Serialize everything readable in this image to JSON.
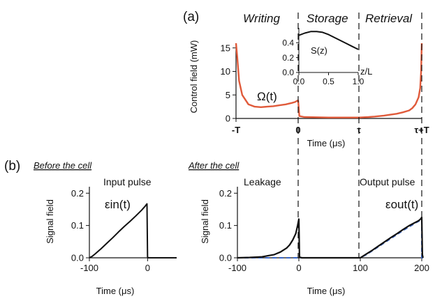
{
  "chart_data": [
    {
      "id": "a",
      "type": "line",
      "panel_label": "(a)",
      "region_labels": [
        "Writing",
        "Storage",
        "Retrieval"
      ],
      "ylabel": "Control field (mW)",
      "xlabel": "Time (μs)",
      "ylim": [
        0,
        16
      ],
      "yticks": [
        0,
        5,
        10,
        15
      ],
      "xticks": [
        "-T",
        "0",
        "τ",
        "τ+T"
      ],
      "annotation": "Ω(t)",
      "series": [
        {
          "color": "#e05a3a",
          "x": [
            0,
            0.02,
            0.05,
            0.1,
            0.2,
            0.3,
            0.4,
            0.5,
            0.6,
            0.7,
            0.8,
            0.9,
            0.95,
            0.99,
            1.0,
            1.02,
            1.1,
            1.5,
            2.0,
            2.3,
            2.5,
            2.8,
            3.0,
            3.2,
            3.4,
            3.6,
            3.7,
            3.8,
            3.9,
            3.95,
            3.98,
            4.0
          ],
          "y": [
            16,
            13,
            8,
            5,
            3,
            2.5,
            2.4,
            2.5,
            2.6,
            2.8,
            3.0,
            3.3,
            3.5,
            3.8,
            3.8,
            0.5,
            0.3,
            0.2,
            0.2,
            0.3,
            0.4,
            0.6,
            0.8,
            1.0,
            1.3,
            1.7,
            2.2,
            3.0,
            4.5,
            6.5,
            10,
            16
          ]
        }
      ]
    },
    {
      "id": "a-inset",
      "type": "line",
      "ylabel": "S(z)",
      "xlabel": "z/L",
      "xlim": [
        0,
        1
      ],
      "ylim": [
        0,
        0.6
      ],
      "xticks": [
        0.0,
        0.5,
        1.0
      ],
      "yticks": [
        0.0,
        0.2,
        0.4
      ],
      "series": [
        {
          "x": [
            0,
            0.1,
            0.2,
            0.3,
            0.4,
            0.5,
            0.6,
            0.7,
            0.8,
            0.9,
            1.0
          ],
          "y": [
            0.5,
            0.53,
            0.55,
            0.55,
            0.54,
            0.51,
            0.47,
            0.43,
            0.39,
            0.35,
            0.31
          ]
        }
      ]
    },
    {
      "id": "b-before",
      "type": "line",
      "panel_label": "(b)",
      "title": "Before the cell",
      "annotation_title": "Input pulse",
      "annotation": "εin(t)",
      "ylabel": "Signal field",
      "xlabel": "Time (μs)",
      "xlim": [
        -100,
        50
      ],
      "ylim": [
        0,
        0.22
      ],
      "xticks": [
        -100,
        0
      ],
      "yticks": [
        0.0,
        0.1,
        0.2
      ],
      "series": [
        {
          "color": "#111111",
          "x": [
            -100,
            -95,
            -90,
            -80,
            -70,
            -60,
            -50,
            -40,
            -30,
            -20,
            -10,
            -5,
            -2,
            -1,
            0,
            1,
            5,
            20,
            50
          ],
          "y": [
            0,
            0.005,
            0.012,
            0.028,
            0.045,
            0.062,
            0.08,
            0.097,
            0.113,
            0.13,
            0.148,
            0.158,
            0.165,
            0.167,
            0.003,
            0,
            0,
            0,
            0
          ]
        }
      ]
    },
    {
      "id": "b-after",
      "type": "line",
      "title": "After the cell",
      "labels": [
        "Leakage",
        "Output pulse"
      ],
      "annotation": "εout(t)",
      "ylabel": "Signal field",
      "xlabel": "Time (μs)",
      "xlim": [
        -100,
        200
      ],
      "ylim": [
        0,
        0.22
      ],
      "xticks": [
        -100,
        0,
        100,
        200
      ],
      "yticks": [
        0.0,
        0.1,
        0.2
      ],
      "series": [
        {
          "color": "#111111",
          "x": [
            -100,
            -80,
            -60,
            -40,
            -30,
            -20,
            -15,
            -10,
            -5,
            -2,
            0,
            1,
            5,
            50,
            99,
            100,
            110,
            120,
            130,
            140,
            150,
            160,
            170,
            180,
            190,
            195,
            198,
            200,
            201,
            202
          ],
          "y": [
            0,
            0.001,
            0.003,
            0.01,
            0.018,
            0.03,
            0.04,
            0.055,
            0.075,
            0.1,
            0.12,
            0.002,
            0,
            0,
            0,
            0,
            0.012,
            0.024,
            0.037,
            0.05,
            0.063,
            0.075,
            0.088,
            0.1,
            0.11,
            0.115,
            0.12,
            0.125,
            0.01,
            0
          ]
        },
        {
          "color": "#3a66c4",
          "dashed": true,
          "x": [
            -100,
            100,
            110,
            130,
            150,
            170,
            190,
            200,
            200,
            202
          ],
          "y": [
            0,
            0,
            0.01,
            0.035,
            0.06,
            0.085,
            0.108,
            0.118,
            0,
            0
          ]
        }
      ]
    }
  ]
}
